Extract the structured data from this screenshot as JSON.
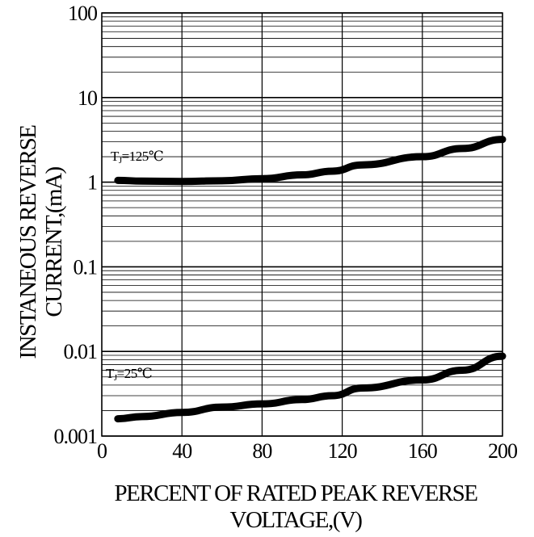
{
  "chart_data": {
    "type": "line",
    "title": "",
    "xlabel_line1": "PERCENT OF RATED PEAK REVERSE",
    "xlabel_line2": "VOLTAGE,(V)",
    "ylabel_line1": "INSTANEOUS REVERSE",
    "ylabel_line2": "CURRENT,(mA)",
    "x_scale": "linear",
    "y_scale": "log",
    "xlim": [
      0,
      200
    ],
    "ylim": [
      0.001,
      100
    ],
    "x_ticks": [
      0,
      40,
      80,
      120,
      160,
      200
    ],
    "x_tick_labels": [
      "0",
      "40",
      "80",
      "120",
      "160",
      "200"
    ],
    "y_ticks": [
      0.001,
      0.01,
      0.1,
      1,
      10,
      100
    ],
    "y_tick_labels": [
      "0.001",
      "0.01",
      "0.1",
      "1",
      "10",
      "100"
    ],
    "grid": true,
    "series": [
      {
        "name": "TJ=125°C",
        "label_sub": "J",
        "label_rest": "=125℃",
        "x": [
          8,
          20,
          40,
          60,
          80,
          100,
          115,
          130,
          160,
          180,
          200
        ],
        "y": [
          1.05,
          1.03,
          1.02,
          1.04,
          1.1,
          1.22,
          1.35,
          1.6,
          2.0,
          2.5,
          3.2
        ]
      },
      {
        "name": "TJ=25°C",
        "label_sub": "J",
        "label_rest": "=25℃",
        "x": [
          8,
          20,
          40,
          60,
          80,
          100,
          115,
          130,
          160,
          180,
          200
        ],
        "y": [
          0.0016,
          0.0017,
          0.0019,
          0.0022,
          0.0024,
          0.0027,
          0.003,
          0.0037,
          0.0046,
          0.006,
          0.0088
        ]
      }
    ]
  }
}
